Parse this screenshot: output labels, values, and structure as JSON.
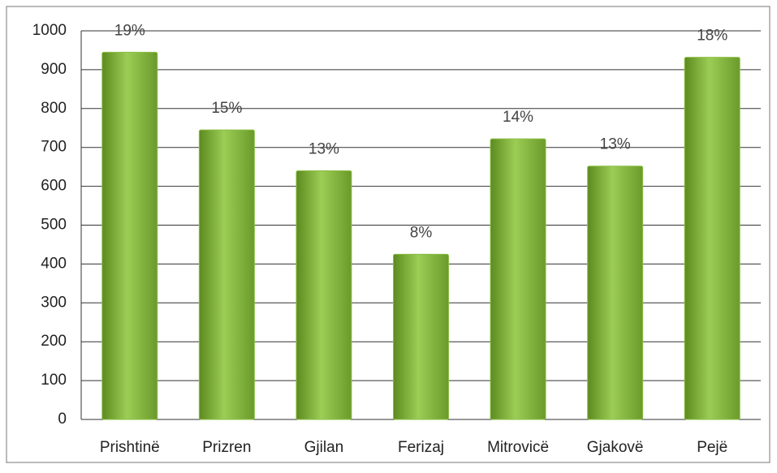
{
  "chart_data": {
    "type": "bar",
    "categories": [
      "Prishtinë",
      "Prizren",
      "Gjilan",
      "Ferizaj",
      "Mitrovicë",
      "Gjakovë",
      "Pejë"
    ],
    "values": [
      945,
      745,
      640,
      425,
      722,
      652,
      932
    ],
    "data_labels": [
      "19%",
      "15%",
      "13%",
      "8%",
      "14%",
      "13%",
      "18%"
    ],
    "color": "#8cbf45",
    "ylim": [
      0,
      1000
    ],
    "yticks": [
      0,
      100,
      200,
      300,
      400,
      500,
      600,
      700,
      800,
      900,
      1000
    ],
    "grid": true
  }
}
